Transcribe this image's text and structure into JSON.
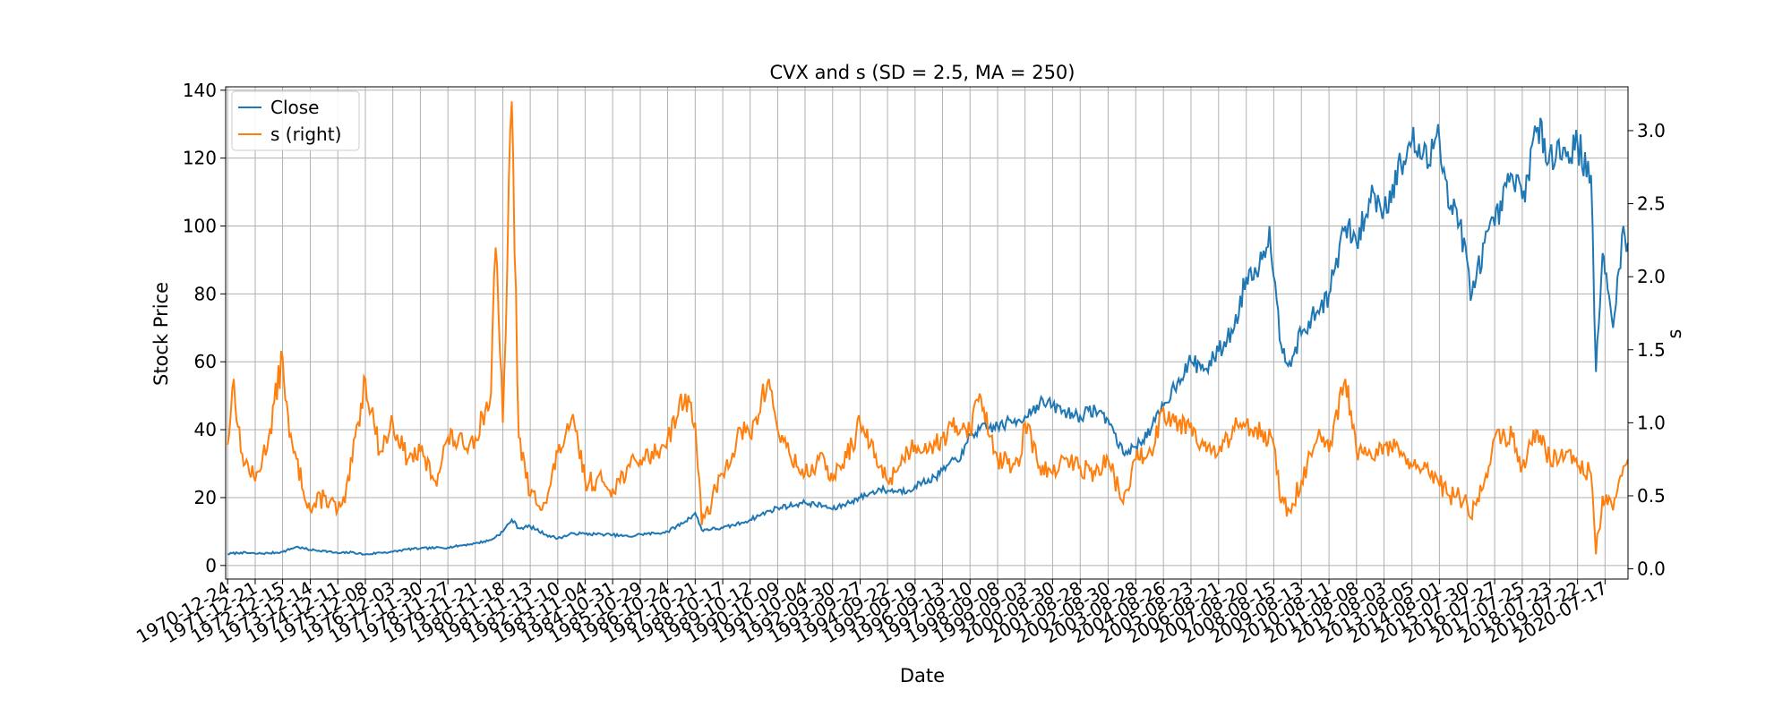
{
  "chart_data": {
    "type": "line",
    "title": "CVX and s (SD = 2.5, MA = 250)",
    "xlabel": "Date",
    "ylabel": "Stock Price",
    "ylabel_right": "s",
    "ylim": [
      -4,
      141
    ],
    "ylim_right": [
      -0.07,
      3.3
    ],
    "yticks": [
      0,
      20,
      40,
      60,
      80,
      100,
      120,
      140
    ],
    "yticks_right": [
      "0.0",
      "0.5",
      "1.0",
      "1.5",
      "2.0",
      "2.5",
      "3.0"
    ],
    "xlim": [
      "1970-11-28",
      "2021-05-15"
    ],
    "grid": true,
    "legend_position": "upper-left",
    "x_tick_labels": [
      "1970-12-24",
      "1971-12-21",
      "1972-12-15",
      "1973-12-14",
      "1974-12-11",
      "1975-12-08",
      "1976-12-03",
      "1977-11-30",
      "1978-11-27",
      "1979-11-21",
      "1980-11-18",
      "1981-11-13",
      "1982-11-10",
      "1983-11-04",
      "1984-10-31",
      "1985-10-29",
      "1986-10-24",
      "1987-10-21",
      "1988-10-17",
      "1989-10-12",
      "1990-10-09",
      "1991-10-04",
      "1992-09-30",
      "1993-09-27",
      "1994-09-22",
      "1995-09-19",
      "1996-09-13",
      "1997-09-10",
      "1998-09-08",
      "1999-09-03",
      "2000-08-30",
      "2001-08-28",
      "2002-08-30",
      "2003-08-28",
      "2004-08-26",
      "2005-08-23",
      "2006-08-21",
      "2007-08-20",
      "2008-08-15",
      "2009-08-13",
      "2010-08-11",
      "2011-08-08",
      "2012-08-03",
      "2013-08-05",
      "2014-08-01",
      "2015-07-30",
      "2016-07-27",
      "2017-07-25",
      "2018-07-23",
      "2019-07-22",
      "2020-07-17"
    ],
    "series": [
      {
        "name": "Close",
        "axis": "left",
        "color": "#1f77b4",
        "points": [
          [
            "1970-12-24",
            3.4
          ],
          [
            "1971-06-15",
            3.8
          ],
          [
            "1971-12-21",
            3.5
          ],
          [
            "1972-06-15",
            3.6
          ],
          [
            "1972-12-15",
            4.0
          ],
          [
            "1973-06-15",
            5.5
          ],
          [
            "1973-12-14",
            4.6
          ],
          [
            "1974-06-15",
            4.3
          ],
          [
            "1974-12-11",
            3.6
          ],
          [
            "1975-06-15",
            3.9
          ],
          [
            "1975-12-08",
            3.2
          ],
          [
            "1976-06-15",
            3.8
          ],
          [
            "1976-12-03",
            4.0
          ],
          [
            "1977-06-15",
            4.8
          ],
          [
            "1977-11-30",
            5.0
          ],
          [
            "1978-06-15",
            5.2
          ],
          [
            "1978-11-27",
            5.3
          ],
          [
            "1979-06-15",
            6.0
          ],
          [
            "1979-11-21",
            6.5
          ],
          [
            "1980-06-15",
            7.5
          ],
          [
            "1980-11-18",
            10.0
          ],
          [
            "1981-03-15",
            13.5
          ],
          [
            "1981-06-15",
            11.0
          ],
          [
            "1981-11-13",
            11.5
          ],
          [
            "1982-06-15",
            9.0
          ],
          [
            "1982-11-10",
            8.0
          ],
          [
            "1983-06-15",
            9.5
          ],
          [
            "1983-11-04",
            9.3
          ],
          [
            "1984-06-15",
            9.2
          ],
          [
            "1984-10-31",
            9.0
          ],
          [
            "1985-06-15",
            8.5
          ],
          [
            "1985-10-29",
            9.2
          ],
          [
            "1986-06-15",
            9.5
          ],
          [
            "1986-10-24",
            10.0
          ],
          [
            "1987-06-15",
            13.0
          ],
          [
            "1987-10-21",
            15.5
          ],
          [
            "1988-01-15",
            10.5
          ],
          [
            "1988-10-17",
            11.0
          ],
          [
            "1989-06-15",
            12.5
          ],
          [
            "1989-10-12",
            13.5
          ],
          [
            "1990-06-15",
            16.0
          ],
          [
            "1990-10-09",
            17.0
          ],
          [
            "1991-06-15",
            18.0
          ],
          [
            "1991-10-04",
            18.5
          ],
          [
            "1992-06-15",
            17.5
          ],
          [
            "1992-09-30",
            16.5
          ],
          [
            "1993-06-15",
            19.0
          ],
          [
            "1993-09-27",
            20.0
          ],
          [
            "1994-06-15",
            22.5
          ],
          [
            "1994-09-22",
            22.0
          ],
          [
            "1995-06-15",
            22.0
          ],
          [
            "1995-09-19",
            23.5
          ],
          [
            "1996-06-15",
            26.0
          ],
          [
            "1996-09-13",
            28.0
          ],
          [
            "1997-06-15",
            33.0
          ],
          [
            "1997-09-10",
            38.5
          ],
          [
            "1998-01-15",
            40.0
          ],
          [
            "1998-09-08",
            41.0
          ],
          [
            "1999-06-15",
            43.0
          ],
          [
            "1999-09-03",
            44.0
          ],
          [
            "2000-03-15",
            48.0
          ],
          [
            "2000-08-30",
            47.0
          ],
          [
            "2001-03-15",
            45.0
          ],
          [
            "2001-08-28",
            44.0
          ],
          [
            "2002-03-15",
            46.0
          ],
          [
            "2002-08-30",
            43.0
          ],
          [
            "2003-03-15",
            33.0
          ],
          [
            "2003-08-28",
            35.0
          ],
          [
            "2004-03-15",
            40.0
          ],
          [
            "2004-08-26",
            47.0
          ],
          [
            "2005-03-15",
            55.0
          ],
          [
            "2005-08-23",
            60.0
          ],
          [
            "2006-03-15",
            58.0
          ],
          [
            "2006-08-21",
            63.0
          ],
          [
            "2007-03-15",
            70.0
          ],
          [
            "2007-08-20",
            85.0
          ],
          [
            "2008-03-15",
            90.0
          ],
          [
            "2008-06-20",
            100.0
          ],
          [
            "2008-08-15",
            85.0
          ],
          [
            "2008-11-20",
            65.0
          ],
          [
            "2009-03-10",
            60.0
          ],
          [
            "2009-08-13",
            68.0
          ],
          [
            "2010-03-15",
            75.0
          ],
          [
            "2010-08-11",
            80.0
          ],
          [
            "2011-03-15",
            100.0
          ],
          [
            "2011-08-08",
            95.0
          ],
          [
            "2012-03-15",
            110.0
          ],
          [
            "2012-08-03",
            105.0
          ],
          [
            "2013-03-15",
            118.0
          ],
          [
            "2013-08-05",
            125.0
          ],
          [
            "2014-03-15",
            118.0
          ],
          [
            "2014-07-15",
            130.0
          ],
          [
            "2014-12-15",
            105.0
          ],
          [
            "2015-03-15",
            105.0
          ],
          [
            "2015-07-30",
            90.0
          ],
          [
            "2015-09-15",
            78.0
          ],
          [
            "2016-03-15",
            95.0
          ],
          [
            "2016-07-27",
            100.0
          ],
          [
            "2017-03-15",
            115.0
          ],
          [
            "2017-07-25",
            108.0
          ],
          [
            "2018-01-25",
            128.0
          ],
          [
            "2018-07-23",
            122.0
          ],
          [
            "2019-03-15",
            122.0
          ],
          [
            "2019-07-22",
            124.0
          ],
          [
            "2020-01-15",
            115.0
          ],
          [
            "2020-03-20",
            57.0
          ],
          [
            "2020-06-15",
            92.0
          ],
          [
            "2020-07-17",
            86.0
          ],
          [
            "2020-10-30",
            70.0
          ],
          [
            "2021-03-15",
            100.0
          ],
          [
            "2021-05-14",
            95.0
          ]
        ]
      },
      {
        "name": "s (right)",
        "axis": "right",
        "color": "#ff7f0e",
        "points": [
          [
            "1970-12-24",
            0.85
          ],
          [
            "1971-03-15",
            1.3
          ],
          [
            "1971-06-15",
            0.8
          ],
          [
            "1971-12-21",
            0.6
          ],
          [
            "1972-06-15",
            0.9
          ],
          [
            "1972-12-15",
            1.45
          ],
          [
            "1973-03-15",
            0.9
          ],
          [
            "1973-12-14",
            0.4
          ],
          [
            "1974-06-15",
            0.5
          ],
          [
            "1974-12-11",
            0.4
          ],
          [
            "1975-03-15",
            0.45
          ],
          [
            "1975-12-08",
            1.3
          ],
          [
            "1976-06-15",
            0.8
          ],
          [
            "1976-12-03",
            1.0
          ],
          [
            "1977-06-15",
            0.75
          ],
          [
            "1977-11-30",
            0.8
          ],
          [
            "1978-06-15",
            0.6
          ],
          [
            "1978-11-27",
            0.9
          ],
          [
            "1979-06-15",
            0.85
          ],
          [
            "1979-11-21",
            0.9
          ],
          [
            "1980-06-15",
            1.2
          ],
          [
            "1980-08-15",
            2.2
          ],
          [
            "1980-11-18",
            1.0
          ],
          [
            "1981-03-15",
            3.2
          ],
          [
            "1981-06-15",
            0.9
          ],
          [
            "1981-11-13",
            0.5
          ],
          [
            "1982-06-15",
            0.45
          ],
          [
            "1982-11-10",
            0.8
          ],
          [
            "1983-06-15",
            1.0
          ],
          [
            "1983-11-04",
            0.6
          ],
          [
            "1984-06-15",
            0.6
          ],
          [
            "1984-10-31",
            0.55
          ],
          [
            "1985-06-15",
            0.7
          ],
          [
            "1985-10-29",
            0.75
          ],
          [
            "1986-06-15",
            0.8
          ],
          [
            "1986-10-24",
            0.9
          ],
          [
            "1987-06-15",
            1.2
          ],
          [
            "1987-10-21",
            1.0
          ],
          [
            "1988-01-15",
            0.3
          ],
          [
            "1988-10-17",
            0.65
          ],
          [
            "1989-06-15",
            0.95
          ],
          [
            "1989-10-12",
            0.9
          ],
          [
            "1990-06-15",
            1.3
          ],
          [
            "1990-10-09",
            0.95
          ],
          [
            "1991-06-15",
            0.7
          ],
          [
            "1991-10-04",
            0.65
          ],
          [
            "1992-06-15",
            0.75
          ],
          [
            "1992-09-30",
            0.6
          ],
          [
            "1993-06-15",
            0.85
          ],
          [
            "1993-09-27",
            1.0
          ],
          [
            "1994-06-15",
            0.7
          ],
          [
            "1994-09-22",
            0.6
          ],
          [
            "1995-06-15",
            0.8
          ],
          [
            "1995-09-19",
            0.85
          ],
          [
            "1996-06-15",
            0.85
          ],
          [
            "1996-09-13",
            0.9
          ],
          [
            "1997-06-15",
            1.0
          ],
          [
            "1997-09-10",
            0.95
          ],
          [
            "1998-01-15",
            1.2
          ],
          [
            "1998-09-08",
            0.75
          ],
          [
            "1999-06-15",
            0.7
          ],
          [
            "1999-09-03",
            1.0
          ],
          [
            "2000-03-15",
            0.7
          ],
          [
            "2000-08-30",
            0.65
          ],
          [
            "2001-03-15",
            0.75
          ],
          [
            "2001-08-28",
            0.7
          ],
          [
            "2002-03-15",
            0.65
          ],
          [
            "2002-08-30",
            0.75
          ],
          [
            "2003-03-15",
            0.45
          ],
          [
            "2003-08-28",
            0.75
          ],
          [
            "2004-03-15",
            0.8
          ],
          [
            "2004-08-26",
            1.1
          ],
          [
            "2005-03-15",
            1.0
          ],
          [
            "2005-08-23",
            1.0
          ],
          [
            "2006-03-15",
            0.8
          ],
          [
            "2006-08-21",
            0.8
          ],
          [
            "2007-03-15",
            0.95
          ],
          [
            "2007-08-20",
            1.0
          ],
          [
            "2008-03-15",
            0.95
          ],
          [
            "2008-08-15",
            0.85
          ],
          [
            "2008-11-20",
            0.45
          ],
          [
            "2009-03-10",
            0.4
          ],
          [
            "2009-08-13",
            0.6
          ],
          [
            "2010-03-15",
            0.9
          ],
          [
            "2010-08-11",
            0.8
          ],
          [
            "2011-03-15",
            1.3
          ],
          [
            "2011-08-08",
            0.8
          ],
          [
            "2012-03-15",
            0.75
          ],
          [
            "2012-08-03",
            0.85
          ],
          [
            "2013-03-15",
            0.8
          ],
          [
            "2013-08-05",
            0.7
          ],
          [
            "2014-03-15",
            0.65
          ],
          [
            "2014-07-15",
            0.6
          ],
          [
            "2014-12-15",
            0.5
          ],
          [
            "2015-03-15",
            0.5
          ],
          [
            "2015-07-30",
            0.45
          ],
          [
            "2015-09-15",
            0.35
          ],
          [
            "2016-03-15",
            0.6
          ],
          [
            "2016-07-27",
            0.9
          ],
          [
            "2017-03-15",
            0.9
          ],
          [
            "2017-07-25",
            0.7
          ],
          [
            "2018-01-25",
            0.95
          ],
          [
            "2018-07-23",
            0.75
          ],
          [
            "2019-03-15",
            0.8
          ],
          [
            "2019-07-22",
            0.7
          ],
          [
            "2020-01-15",
            0.65
          ],
          [
            "2020-03-20",
            0.1
          ],
          [
            "2020-06-15",
            0.5
          ],
          [
            "2020-07-17",
            0.45
          ],
          [
            "2020-10-30",
            0.4
          ],
          [
            "2021-03-15",
            0.7
          ],
          [
            "2021-05-14",
            0.75
          ]
        ]
      }
    ]
  }
}
